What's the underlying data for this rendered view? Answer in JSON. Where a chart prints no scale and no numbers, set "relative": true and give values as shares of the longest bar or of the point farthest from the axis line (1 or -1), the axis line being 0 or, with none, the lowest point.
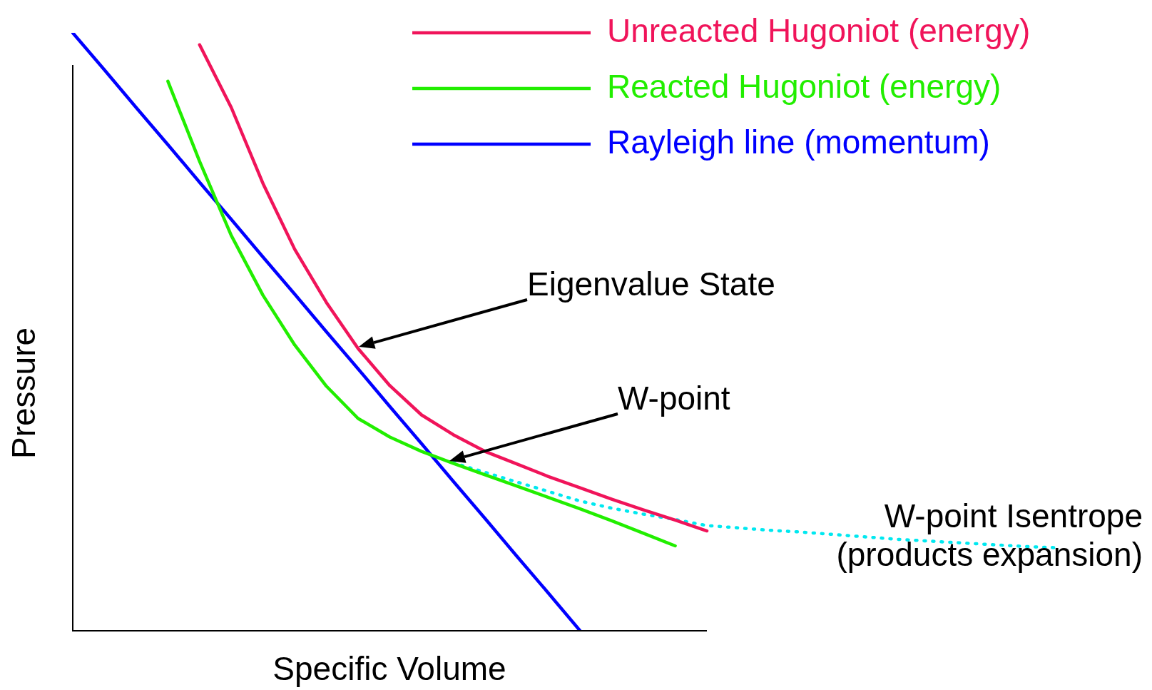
{
  "chart_data": {
    "type": "line",
    "xlabel": "Specific Volume",
    "ylabel": "Pressure",
    "relative": true,
    "legend": "top right",
    "marker": "none",
    "line_style": "solid",
    "categories": [
      null,
      null,
      null,
      null,
      null,
      null,
      null,
      null,
      null,
      null,
      null,
      null,
      null,
      null,
      null,
      null,
      null,
      null,
      null,
      null,
      null,
      null,
      null,
      null,
      null,
      null,
      null,
      null,
      null,
      null,
      null,
      null
    ],
    "series": [
      {
        "name": "Unreacted Hugoniot (energy)",
        "color": "#f0145a",
        "values": [
          null,
          null,
          null,
          null,
          0.98,
          0.875,
          0.748,
          0.638,
          0.549,
          0.472,
          0.41,
          0.361,
          0.328,
          0.3,
          0.279,
          0.258,
          0.239,
          0.22,
          0.202,
          0.185,
          0.167,
          null,
          null,
          null,
          null,
          null,
          null,
          null,
          null,
          null,
          null,
          null
        ]
      },
      {
        "name": "Reacted Hugoniot (energy)",
        "color": "#22ee00",
        "values": [
          null,
          null,
          null,
          0.919,
          0.785,
          0.661,
          0.561,
          0.478,
          0.409,
          0.355,
          0.324,
          0.3,
          0.28,
          0.261,
          0.242,
          0.223,
          0.204,
          0.184,
          0.163,
          0.142,
          null,
          null,
          null,
          null,
          null,
          null,
          null,
          null,
          null,
          null,
          null,
          null
        ]
      },
      {
        "name": "Rayleigh line (momentum)",
        "color": "#0000ff",
        "values": [
          1.0,
          0.938,
          0.875,
          0.813,
          0.75,
          0.688,
          0.625,
          0.563,
          0.5,
          0.438,
          0.375,
          0.313,
          0.25,
          0.188,
          0.125,
          0.063,
          0,
          null,
          null,
          null,
          null,
          null,
          null,
          null,
          null,
          null,
          null,
          null,
          null,
          null,
          null,
          null
        ]
      },
      {
        "name": "W-point Isentrope\n(products expansion)",
        "color": "#00e8f0",
        "line_style": "dotted",
        "values": [
          null,
          null,
          null,
          null,
          null,
          null,
          null,
          null,
          null,
          null,
          null,
          null,
          0.281,
          0.265,
          0.249,
          0.233,
          0.217,
          0.205,
          0.195,
          0.186,
          0.176,
          0.172,
          0.168,
          0.165,
          0.161,
          0.157,
          0.153,
          0.15,
          0.147,
          0.144,
          0.141,
          0.139
        ]
      }
    ],
    "annotations": [
      "Eigenvalue State",
      "W-point"
    ]
  }
}
